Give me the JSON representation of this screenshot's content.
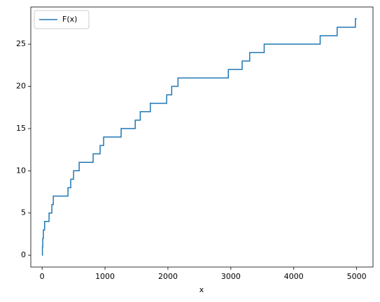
{
  "chart_data": {
    "type": "step",
    "xlabel": "x",
    "x": [
      0,
      5,
      10,
      20,
      40,
      110,
      155,
      178,
      411,
      455,
      500,
      589,
      811,
      922,
      978,
      1256,
      1480,
      1560,
      1720,
      1980,
      2060,
      2160,
      2960,
      3180,
      3300,
      3530,
      4420,
      4690,
      4980,
      5000
    ],
    "series": [
      {
        "name": "F(x)",
        "color": "#1f77b4",
        "values": [
          0,
          1,
          2,
          3,
          4,
          5,
          6,
          7,
          8,
          9,
          10,
          11,
          12,
          13,
          14,
          15,
          16,
          17,
          18,
          19,
          20,
          21,
          22,
          23,
          24,
          25,
          26,
          27,
          28,
          28
        ]
      }
    ],
    "xlim": [
      -180,
      5260
    ],
    "ylim": [
      -1.4,
      29.4
    ],
    "xticks": [
      0,
      1000,
      2000,
      3000,
      4000,
      5000
    ],
    "yticks": [
      0,
      5,
      10,
      15,
      20,
      25
    ],
    "legend": "upper left"
  }
}
